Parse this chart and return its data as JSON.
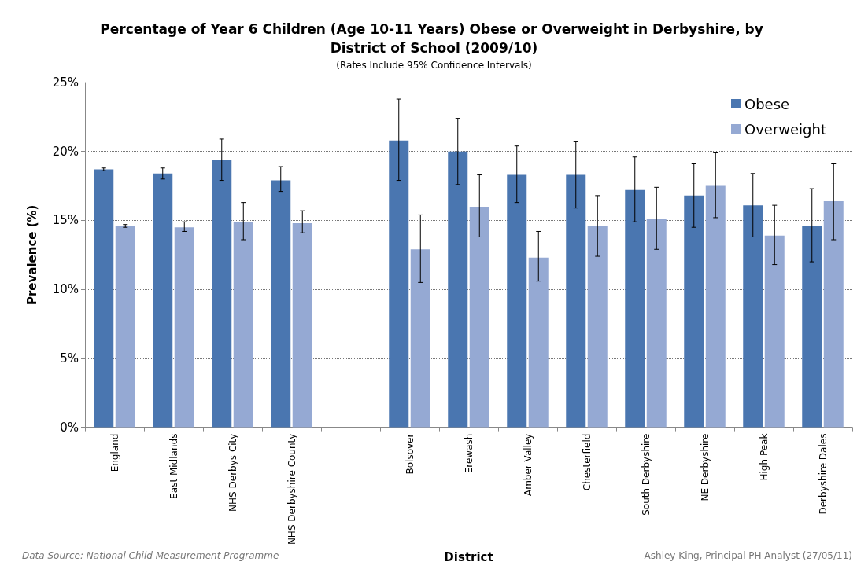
{
  "chart_data": {
    "type": "bar",
    "title": "Percentage of Year 6 Children (Age 10-11 Years) Obese or Overweight in Derbyshire, by District of School (2009/10)",
    "subtitle": "(Rates Include 95% Confidence Intervals)",
    "xlabel": "District",
    "ylabel": "Prevalence (%)",
    "categories": [
      "England",
      "East Midlands",
      "NHS Derbys City",
      "NHS Derbyshire County",
      null,
      "Bolsover",
      "Erewash",
      "Amber Valley",
      "Chesterfield",
      "South Derbyshire",
      "NE Derbyshire",
      "High Peak",
      "Derbyshire Dales"
    ],
    "series": [
      {
        "name": "Obese",
        "color": "#4a76b0",
        "values": [
          18.7,
          18.4,
          19.4,
          17.9,
          null,
          20.8,
          20.0,
          18.3,
          18.3,
          17.2,
          16.8,
          16.1,
          14.6
        ],
        "errors": [
          [
            18.6,
            18.8
          ],
          [
            18.0,
            18.8
          ],
          [
            17.9,
            20.9
          ],
          [
            17.1,
            18.9
          ],
          null,
          [
            17.9,
            23.8
          ],
          [
            17.6,
            22.4
          ],
          [
            16.3,
            20.4
          ],
          [
            15.9,
            20.7
          ],
          [
            14.9,
            19.6
          ],
          [
            14.5,
            19.1
          ],
          [
            13.8,
            18.4
          ],
          [
            12.0,
            17.3
          ]
        ]
      },
      {
        "name": "Overweight",
        "color": "#95a9d3",
        "values": [
          14.6,
          14.5,
          14.9,
          14.8,
          null,
          12.9,
          16.0,
          12.3,
          14.6,
          15.1,
          17.5,
          13.9,
          16.4
        ],
        "errors": [
          [
            14.5,
            14.7
          ],
          [
            14.2,
            14.9
          ],
          [
            13.6,
            16.3
          ],
          [
            14.1,
            15.7
          ],
          null,
          [
            10.5,
            15.4
          ],
          [
            13.8,
            18.3
          ],
          [
            10.6,
            14.2
          ],
          [
            12.4,
            16.8
          ],
          [
            12.9,
            17.4
          ],
          [
            15.2,
            19.9
          ],
          [
            11.8,
            16.1
          ],
          [
            13.6,
            19.1
          ]
        ]
      }
    ],
    "ylim": [
      0,
      25
    ],
    "yticks": [
      {
        "value": 0,
        "label": "0%"
      },
      {
        "value": 5,
        "label": "5%"
      },
      {
        "value": 10,
        "label": "10%"
      },
      {
        "value": 15,
        "label": "15%"
      },
      {
        "value": 20,
        "label": "20%"
      },
      {
        "value": 25,
        "label": "25%"
      }
    ],
    "grid": "y",
    "legend": "top right",
    "annotations": [
      "Data Source: National Child Measurement Programme",
      "Ashley King, Principal PH Analyst (27/05/11)"
    ]
  }
}
